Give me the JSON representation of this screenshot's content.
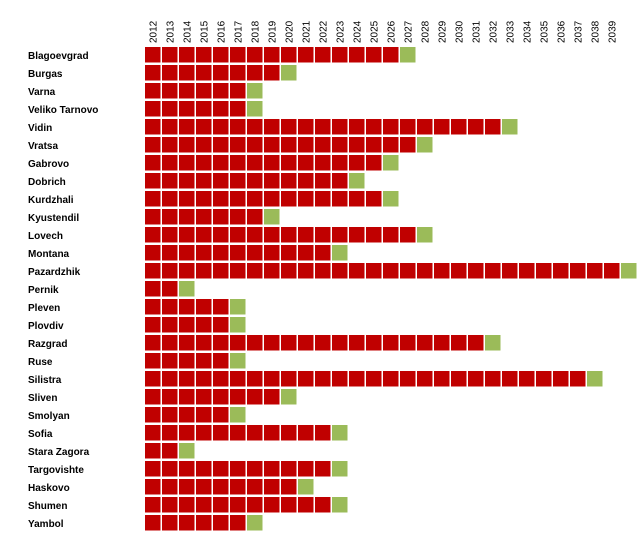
{
  "chart_data": {
    "type": "heatmap",
    "title": "",
    "xlabel": "",
    "ylabel": "",
    "x_years": [
      2012,
      2013,
      2014,
      2015,
      2016,
      2017,
      2018,
      2019,
      2020,
      2021,
      2022,
      2023,
      2024,
      2025,
      2026,
      2027,
      2028,
      2029,
      2030,
      2031,
      2032,
      2033,
      2034,
      2035,
      2036,
      2037,
      2038,
      2039
    ],
    "x_labels": [
      "2012",
      "2013",
      "2014",
      "2015",
      "2016",
      "2017",
      "2018",
      "2019",
      "2020",
      "2021",
      "2022",
      "2023",
      "2024",
      "2025",
      "2026",
      "2027",
      "2028",
      "2029",
      "2030",
      "2031",
      "2032",
      "2033",
      "2034",
      "2035",
      "2036",
      "2037",
      "2038",
      "2039"
    ],
    "colors": {
      "red": "#c00000",
      "green": "#9bbb59"
    },
    "legend": "none",
    "rows": [
      {
        "name": "Blagoevgrad",
        "green_year": 2027
      },
      {
        "name": "Burgas",
        "green_year": 2020
      },
      {
        "name": "Varna",
        "green_year": 2018
      },
      {
        "name": "Veliko Tarnovo",
        "green_year": 2018
      },
      {
        "name": "Vidin",
        "green_year": 2033
      },
      {
        "name": "Vratsa",
        "green_year": 2028
      },
      {
        "name": "Gabrovo",
        "green_year": 2026
      },
      {
        "name": "Dobrich",
        "green_year": 2024
      },
      {
        "name": "Kurdzhali",
        "green_year": 2026
      },
      {
        "name": "Kyustendil",
        "green_year": 2019
      },
      {
        "name": "Lovech",
        "green_year": 2028
      },
      {
        "name": "Montana",
        "green_year": 2023
      },
      {
        "name": "Pazardzhik",
        "green_year": 2040
      },
      {
        "name": "Pernik",
        "green_year": 2014
      },
      {
        "name": "Pleven",
        "green_year": 2017
      },
      {
        "name": "Plovdiv",
        "green_year": 2017
      },
      {
        "name": "Razgrad",
        "green_year": 2032
      },
      {
        "name": "Ruse",
        "green_year": 2017
      },
      {
        "name": "Silistra",
        "green_year": 2038
      },
      {
        "name": "Sliven",
        "green_year": 2020
      },
      {
        "name": "Smolyan",
        "green_year": 2017
      },
      {
        "name": "Sofia",
        "green_year": 2023
      },
      {
        "name": "Stara Zagora",
        "green_year": 2014
      },
      {
        "name": "Targovishte",
        "green_year": 2023
      },
      {
        "name": "Haskovo",
        "green_year": 2021
      },
      {
        "name": "Shumen",
        "green_year": 2023
      },
      {
        "name": "Yambol",
        "green_year": 2018
      }
    ]
  }
}
